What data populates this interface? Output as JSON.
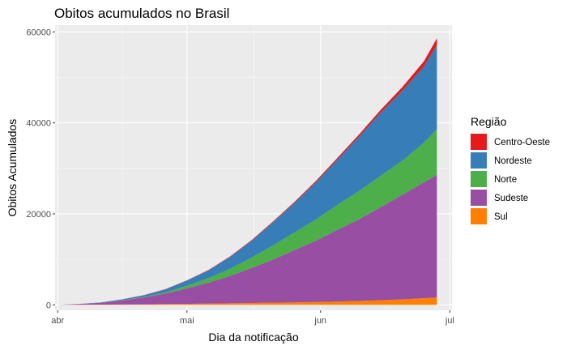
{
  "chart_data": {
    "type": "area",
    "stacked": true,
    "title": "Obitos acumulados no Brasil",
    "xlabel": "Dia da notificação",
    "ylabel": "Obitos Acumulados",
    "x_ticks": [
      "abr",
      "mai",
      "jun",
      "jul"
    ],
    "y_ticks": [
      "0",
      "20000",
      "40000",
      "60000"
    ],
    "ylim": [
      -1200,
      61500
    ],
    "grid": true,
    "legend": {
      "title": "Região",
      "position": "right"
    },
    "x": [
      0,
      5,
      10,
      15,
      20,
      25,
      30,
      35,
      40,
      45,
      50,
      55,
      60,
      65,
      70,
      75,
      80,
      85,
      88
    ],
    "series": [
      {
        "name": "Sul",
        "color": "#ff7f00",
        "values": [
          0,
          20,
          50,
          80,
          120,
          170,
          220,
          280,
          340,
          400,
          470,
          540,
          620,
          720,
          850,
          1000,
          1200,
          1450,
          1600
        ]
      },
      {
        "name": "Sudeste",
        "color": "#984ea3",
        "values": [
          0,
          150,
          400,
          900,
          1500,
          2300,
          3400,
          4600,
          6000,
          7700,
          9500,
          11500,
          13500,
          15800,
          18000,
          20500,
          23000,
          25500,
          27000
        ]
      },
      {
        "name": "Norte",
        "color": "#4daf4a",
        "values": [
          0,
          5,
          20,
          60,
          130,
          280,
          600,
          1000,
          1600,
          2300,
          3100,
          3900,
          4700,
          5500,
          6200,
          6900,
          7500,
          8700,
          10000
        ]
      },
      {
        "name": "Nordeste",
        "color": "#377eb8",
        "values": [
          0,
          15,
          60,
          160,
          350,
          650,
          1100,
          1700,
          2600,
          3700,
          5100,
          6500,
          8200,
          10000,
          12000,
          13900,
          15400,
          16800,
          18500
        ]
      },
      {
        "name": "Centro-Oeste",
        "color": "#e41a1c",
        "values": [
          0,
          5,
          15,
          25,
          35,
          50,
          70,
          90,
          110,
          140,
          180,
          230,
          300,
          380,
          470,
          600,
          800,
          1100,
          1500
        ]
      }
    ],
    "legend_order": [
      "Centro-Oeste",
      "Nordeste",
      "Norte",
      "Sudeste",
      "Sul"
    ]
  }
}
